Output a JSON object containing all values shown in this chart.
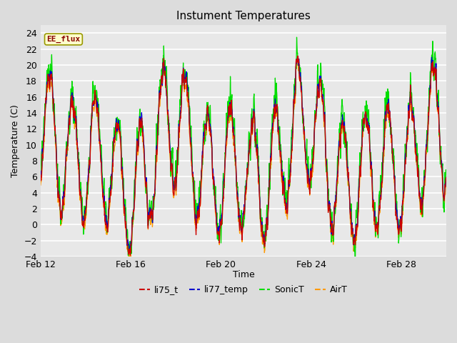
{
  "title": "Instument Temperatures",
  "xlabel": "Time",
  "ylabel": "Temperature (C)",
  "ylim": [
    -4,
    25
  ],
  "yticks": [
    -4,
    -2,
    0,
    2,
    4,
    6,
    8,
    10,
    12,
    14,
    16,
    18,
    20,
    22,
    24
  ],
  "outer_bg_color": "#dcdcdc",
  "plot_bg_color": "#e8e8e8",
  "grid_color": "#ffffff",
  "line_colors": {
    "li75_t": "#cc0000",
    "li77_temp": "#0000cc",
    "SonicT": "#00dd00",
    "AirT": "#ff9900"
  },
  "annotation_text": "EE_flux",
  "annotation_bg": "#ffffcc",
  "annotation_border": "#999900",
  "date_start": 12,
  "date_end": 30,
  "xtick_positions": [
    12,
    16,
    20,
    24,
    28
  ],
  "xtick_labels": [
    "Feb 12",
    "Feb 16",
    "Feb 20",
    "Feb 24",
    "Feb 28"
  ],
  "linewidth": 0.9
}
